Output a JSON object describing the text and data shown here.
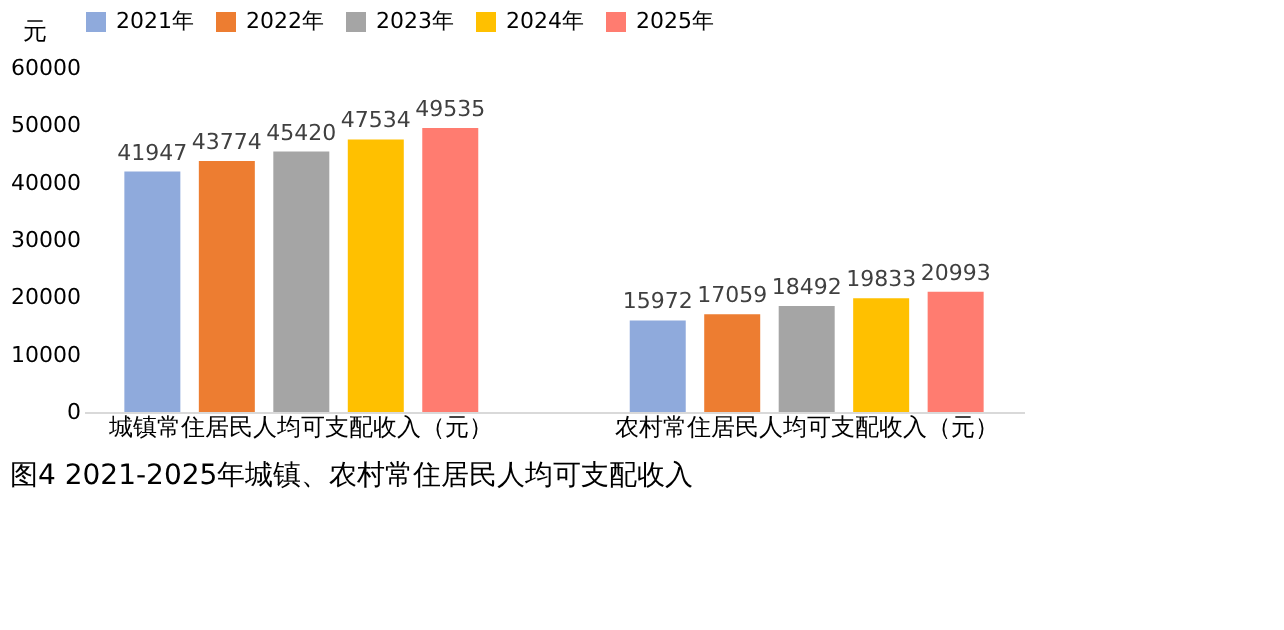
{
  "chart_data": {
    "type": "bar",
    "title": "图4 2021-2025年城镇、农村常住居民人均可支配收入",
    "ylabel": "元",
    "categories": [
      "城镇常住居民人均可支配收入（元）",
      "农村常住居民人均可支配收入（元）"
    ],
    "series": [
      {
        "name": "2021年",
        "color": "#8faadc",
        "values": [
          41947,
          15972
        ]
      },
      {
        "name": "2022年",
        "color": "#ed7d31",
        "values": [
          43774,
          17059
        ]
      },
      {
        "name": "2023年",
        "color": "#a5a5a5",
        "values": [
          45420,
          18492
        ]
      },
      {
        "name": "2024年",
        "color": "#ffc000",
        "values": [
          47534,
          19833
        ]
      },
      {
        "name": "2025年",
        "color": "#ff7c70",
        "values": [
          49535,
          20993
        ]
      }
    ],
    "ylim": [
      0,
      60000
    ],
    "yticks": [
      0,
      10000,
      20000,
      30000,
      40000,
      50000,
      60000
    ],
    "grid": false,
    "legend": "top",
    "data_labels": true
  }
}
